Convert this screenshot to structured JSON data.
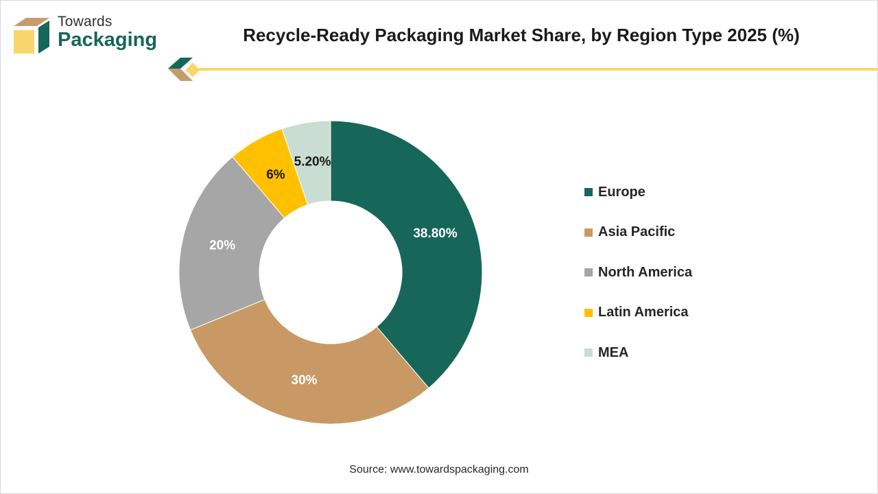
{
  "brand": {
    "line1": "Towards",
    "line2": "Packaging",
    "colors": {
      "green": "#17665a",
      "tan": "#c69c6d",
      "yellow": "#f9d66b"
    }
  },
  "chart_data": {
    "type": "pie",
    "variant": "donut",
    "title": "Recycle-Ready Packaging Market Share, by Region Type 2025 (%)",
    "categories": [
      "Europe",
      "Asia Pacific",
      "North America",
      "Latin America",
      "MEA"
    ],
    "values": [
      38.8,
      30,
      20,
      6,
      5.2
    ],
    "labels": [
      "38.80%",
      "30%",
      "20%",
      "6%",
      "5.20%"
    ],
    "colors": [
      "#17665a",
      "#c99965",
      "#a6a6a6",
      "#ffc000",
      "#c9ddd2"
    ],
    "label_colors": [
      "#ffffff",
      "#ffffff",
      "#ffffff",
      "#1a1a1a",
      "#1a1a1a"
    ],
    "legend_position": "right"
  },
  "footer": {
    "source": "Source: www.towardspackaging.com"
  }
}
